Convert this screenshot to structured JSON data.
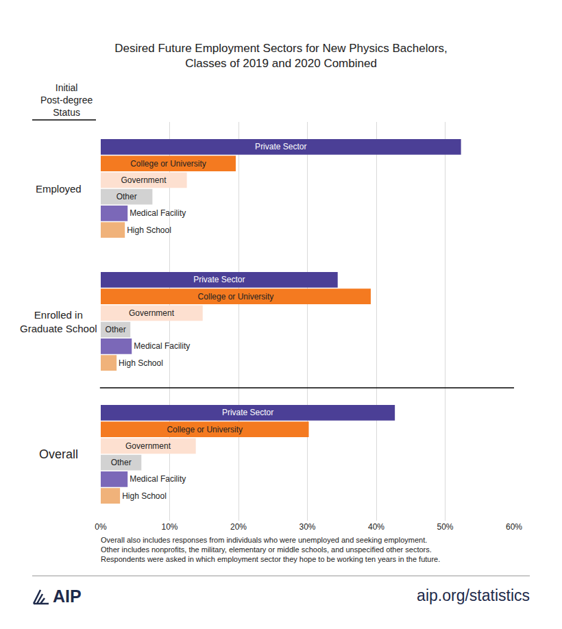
{
  "chart_data": {
    "type": "bar",
    "orientation": "horizontal",
    "title": [
      "Desired Future Employment Sectors for New Physics Bachelors,",
      "Classes of 2019 and 2020 Combined"
    ],
    "category_header": [
      "Initial",
      "Post-degree",
      "Status"
    ],
    "categories": [
      "Employed",
      "Enrolled in\nGraduate School",
      "Overall"
    ],
    "series": [
      {
        "name": "Private Sector",
        "color": "#4b3f96",
        "values": [
          52.3,
          34.4,
          42.7
        ]
      },
      {
        "name": "College or University",
        "color": "#f47a20",
        "values": [
          19.6,
          39.2,
          30.2
        ]
      },
      {
        "name": "Government",
        "color": "#fde0d0",
        "values": [
          12.5,
          14.8,
          13.8
        ]
      },
      {
        "name": "Other",
        "color": "#d2d2d2",
        "values": [
          7.5,
          4.3,
          5.9
        ]
      },
      {
        "name": "Medical Facility",
        "color": "#7b68b8",
        "values": [
          3.9,
          4.5,
          3.9
        ]
      },
      {
        "name": "High School",
        "color": "#f0b27a",
        "values": [
          3.5,
          2.3,
          2.8
        ]
      }
    ],
    "xlim": [
      0,
      60
    ],
    "xticks": [
      {
        "value": 0,
        "label": "0%"
      },
      {
        "value": 10,
        "label": "10%"
      },
      {
        "value": 20,
        "label": "20%"
      },
      {
        "value": 30,
        "label": "30%"
      },
      {
        "value": 40,
        "label": "40%"
      },
      {
        "value": 50,
        "label": "50%"
      },
      {
        "value": 60,
        "label": "60%"
      }
    ],
    "grid": true,
    "tick_labels": "x",
    "notes": [
      "Overall also includes responses from individuals who were unemployed and seeking employment.",
      "Other includes nonprofits, the military, elementary or middle schools,  and unspecified other sectors.",
      "Respondents were asked in which employment sector they hope to be working ten years in the future."
    ],
    "source": {
      "logo": "AIP",
      "url": "aip.org/statistics"
    }
  }
}
